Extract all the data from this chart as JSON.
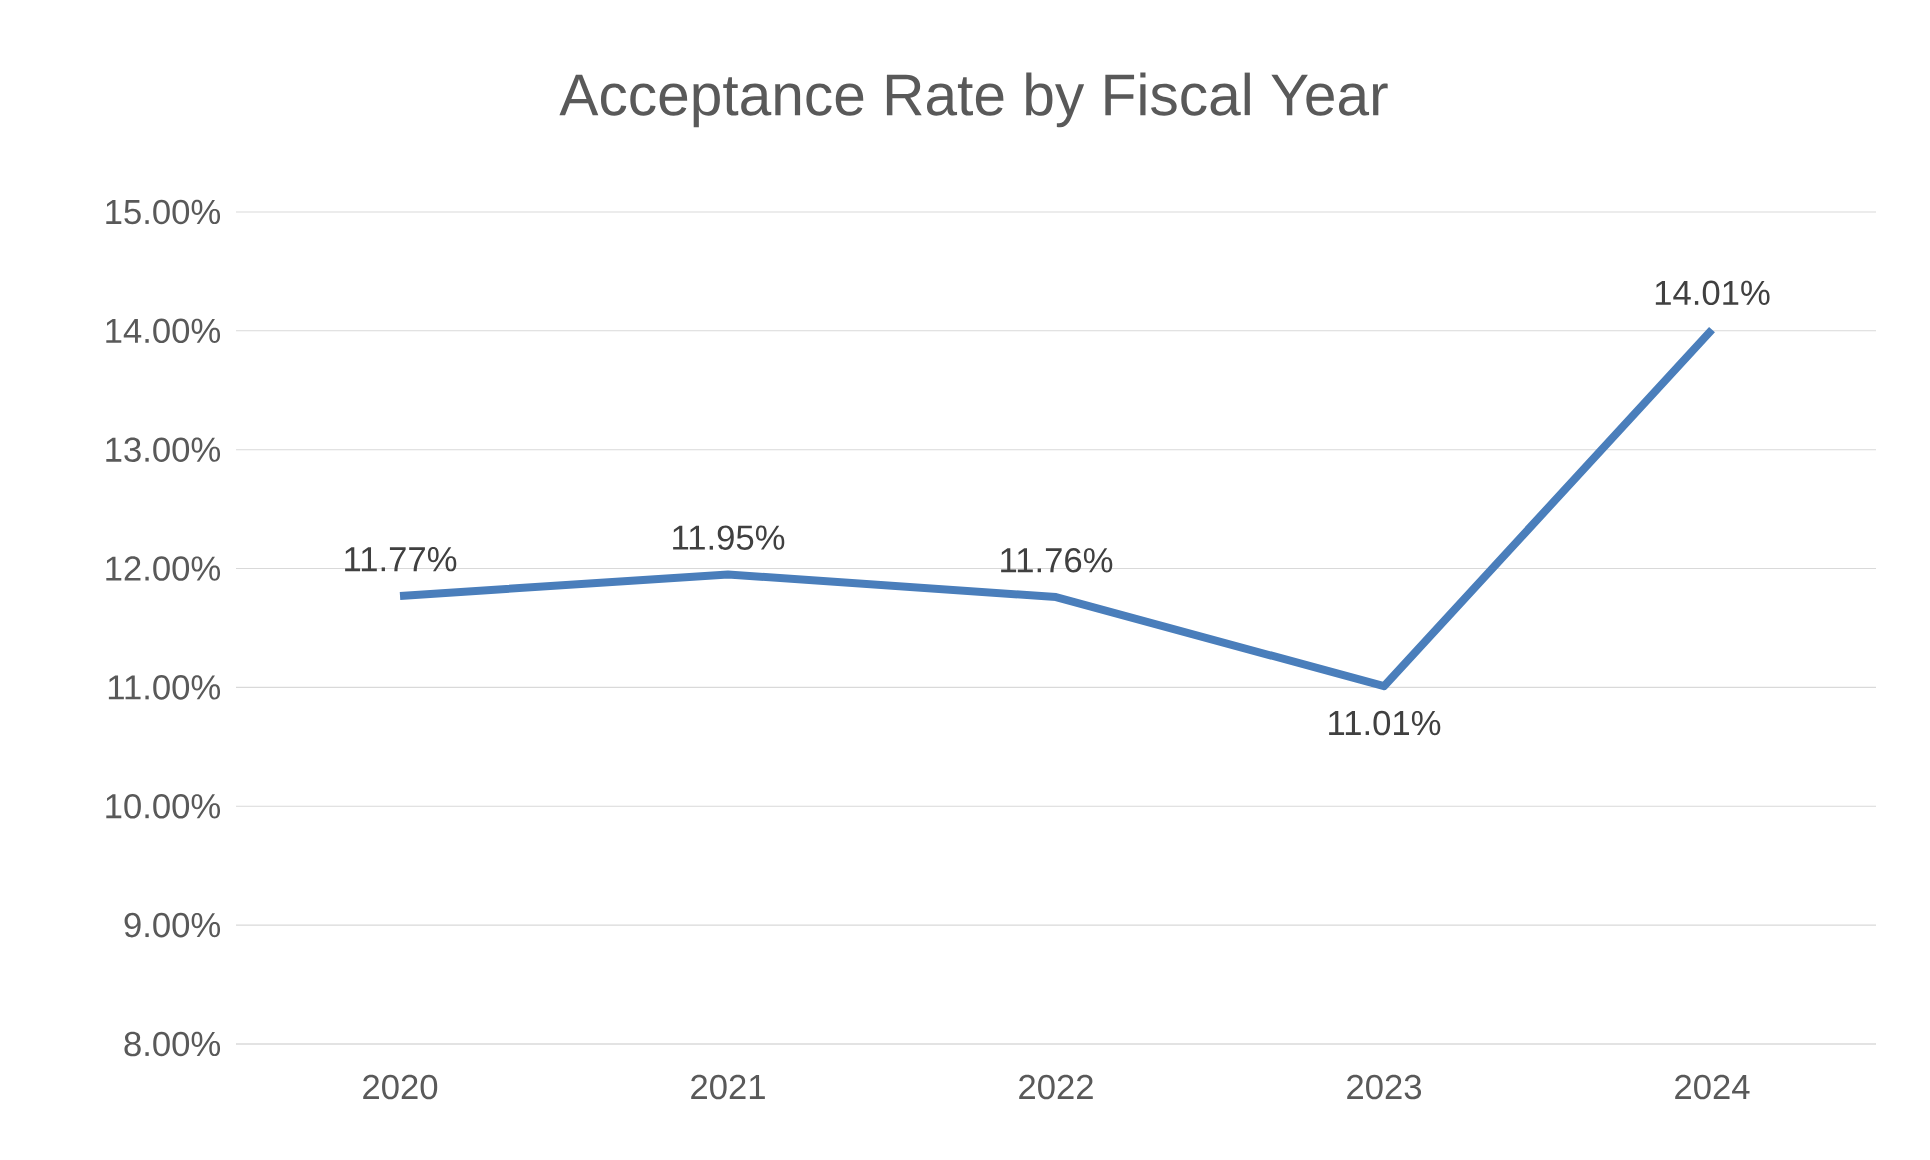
{
  "chart_data": {
    "type": "line",
    "title": "Acceptance Rate by Fiscal Year",
    "categories": [
      "2020",
      "2021",
      "2022",
      "2023",
      "2024"
    ],
    "series": [
      {
        "color": "#4a7ebb",
        "values": [
          11.77,
          11.95,
          11.76,
          11.01,
          14.01
        ],
        "value_labels": [
          "11.77%",
          "11.95%",
          "11.76%",
          "11.01%",
          "14.01%"
        ]
      }
    ],
    "ylim": [
      8,
      15
    ],
    "yticks": [
      {
        "value": 8,
        "label": "8.00%"
      },
      {
        "value": 9,
        "label": "9.00%"
      },
      {
        "value": 10,
        "label": "10.00%"
      },
      {
        "value": 11,
        "label": "11.00%"
      },
      {
        "value": 12,
        "label": "12.00%"
      },
      {
        "value": 13,
        "label": "13.00%"
      },
      {
        "value": 14,
        "label": "14.00%"
      },
      {
        "value": 15,
        "label": "15.00%"
      }
    ],
    "grid": "y",
    "marker": "none",
    "line_style": "solid"
  }
}
